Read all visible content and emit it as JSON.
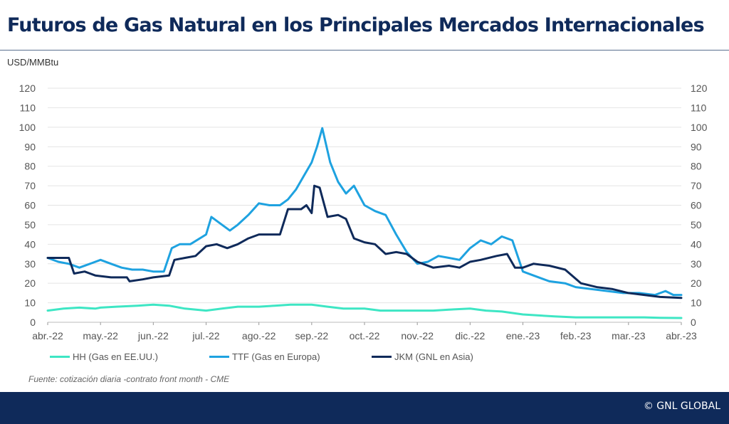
{
  "header": {
    "title": "Futuros de Gas Natural en los Principales Mercados Internacionales",
    "unit_label": "USD/MMBtu"
  },
  "footer": {
    "source": "Fuente: cotización diaria  -contrato front month - CME",
    "brand": "© GNL GLOBAL"
  },
  "colors": {
    "hh": "#3ee6c4",
    "ttf": "#1ea2e0",
    "jkm": "#0f2a5a",
    "footer": "#0f2a5a"
  },
  "chart_data": {
    "type": "line",
    "ylim": [
      0,
      120
    ],
    "yticks": [
      "0",
      "10",
      "20",
      "30",
      "40",
      "50",
      "60",
      "70",
      "80",
      "90",
      "100",
      "110",
      "120"
    ],
    "x_tick_labels": [
      "abr.-22",
      "may.-22",
      "jun.-22",
      "jul.-22",
      "ago.-22",
      "sep.-22",
      "oct.-22",
      "nov.-22",
      "dic.-22",
      "ene.-23",
      "feb.-23",
      "mar.-23",
      "abr.-23"
    ],
    "grid": true,
    "legend_position": "bottom",
    "series": [
      {
        "name": "HH (Gas en EE.UU.)",
        "color_key": "hh",
        "points": [
          [
            0,
            6
          ],
          [
            0.3,
            7
          ],
          [
            0.6,
            7.5
          ],
          [
            0.9,
            7
          ],
          [
            1.0,
            7.5
          ],
          [
            1.3,
            8
          ],
          [
            1.7,
            8.5
          ],
          [
            2.0,
            9
          ],
          [
            2.3,
            8.5
          ],
          [
            2.6,
            7
          ],
          [
            3.0,
            6
          ],
          [
            3.3,
            7
          ],
          [
            3.6,
            8
          ],
          [
            4.0,
            8
          ],
          [
            4.3,
            8.5
          ],
          [
            4.6,
            9
          ],
          [
            5.0,
            9
          ],
          [
            5.3,
            8
          ],
          [
            5.6,
            7
          ],
          [
            6.0,
            7
          ],
          [
            6.3,
            6
          ],
          [
            6.6,
            6
          ],
          [
            7.0,
            6
          ],
          [
            7.3,
            6
          ],
          [
            7.6,
            6.5
          ],
          [
            8.0,
            7
          ],
          [
            8.3,
            6
          ],
          [
            8.6,
            5.5
          ],
          [
            9.0,
            4
          ],
          [
            9.3,
            3.5
          ],
          [
            9.6,
            3
          ],
          [
            10.0,
            2.5
          ],
          [
            10.3,
            2.5
          ],
          [
            10.6,
            2.5
          ],
          [
            11.0,
            2.5
          ],
          [
            11.3,
            2.5
          ],
          [
            11.6,
            2.3
          ],
          [
            12.0,
            2.2
          ]
        ]
      },
      {
        "name": "TTF (Gas en Europa)",
        "color_key": "ttf",
        "points": [
          [
            0,
            33
          ],
          [
            0.2,
            31
          ],
          [
            0.4,
            30
          ],
          [
            0.6,
            28
          ],
          [
            0.8,
            30
          ],
          [
            1.0,
            32
          ],
          [
            1.2,
            30
          ],
          [
            1.4,
            28
          ],
          [
            1.6,
            27
          ],
          [
            1.8,
            27
          ],
          [
            2.0,
            26
          ],
          [
            2.2,
            26
          ],
          [
            2.35,
            38
          ],
          [
            2.5,
            40
          ],
          [
            2.7,
            40
          ],
          [
            3.0,
            45
          ],
          [
            3.1,
            54
          ],
          [
            3.3,
            50
          ],
          [
            3.45,
            47
          ],
          [
            3.6,
            50
          ],
          [
            3.8,
            55
          ],
          [
            4.0,
            61
          ],
          [
            4.2,
            60
          ],
          [
            4.4,
            60
          ],
          [
            4.55,
            63
          ],
          [
            4.7,
            68
          ],
          [
            4.85,
            75
          ],
          [
            5.0,
            82
          ],
          [
            5.1,
            90
          ],
          [
            5.2,
            99.5
          ],
          [
            5.35,
            82
          ],
          [
            5.5,
            72
          ],
          [
            5.65,
            66
          ],
          [
            5.8,
            70
          ],
          [
            6.0,
            60
          ],
          [
            6.2,
            57
          ],
          [
            6.4,
            55
          ],
          [
            6.6,
            45
          ],
          [
            6.8,
            36
          ],
          [
            7.0,
            30
          ],
          [
            7.2,
            31
          ],
          [
            7.4,
            34
          ],
          [
            7.6,
            33
          ],
          [
            7.8,
            32
          ],
          [
            8.0,
            38
          ],
          [
            8.2,
            42
          ],
          [
            8.4,
            40
          ],
          [
            8.6,
            44
          ],
          [
            8.8,
            42
          ],
          [
            9.0,
            26
          ],
          [
            9.2,
            24
          ],
          [
            9.5,
            21
          ],
          [
            9.8,
            20
          ],
          [
            10.0,
            18
          ],
          [
            10.3,
            17
          ],
          [
            10.6,
            16
          ],
          [
            10.9,
            15
          ],
          [
            11.2,
            15
          ],
          [
            11.5,
            14
          ],
          [
            11.7,
            16
          ],
          [
            11.85,
            14
          ],
          [
            12.0,
            14
          ]
        ]
      },
      {
        "name": "JKM (GNL en Asia)",
        "color_key": "jkm",
        "points": [
          [
            0,
            33
          ],
          [
            0.4,
            33
          ],
          [
            0.5,
            25
          ],
          [
            0.7,
            26
          ],
          [
            0.9,
            24
          ],
          [
            1.2,
            23
          ],
          [
            1.5,
            23
          ],
          [
            1.55,
            21
          ],
          [
            1.8,
            22
          ],
          [
            2.0,
            23
          ],
          [
            2.3,
            24
          ],
          [
            2.4,
            32
          ],
          [
            2.6,
            33
          ],
          [
            2.8,
            34
          ],
          [
            3.0,
            39
          ],
          [
            3.2,
            40
          ],
          [
            3.4,
            38
          ],
          [
            3.6,
            40
          ],
          [
            3.8,
            43
          ],
          [
            4.0,
            45
          ],
          [
            4.2,
            45
          ],
          [
            4.4,
            45
          ],
          [
            4.55,
            58
          ],
          [
            4.8,
            58
          ],
          [
            4.9,
            60
          ],
          [
            5.0,
            56
          ],
          [
            5.05,
            70
          ],
          [
            5.15,
            69
          ],
          [
            5.3,
            54
          ],
          [
            5.5,
            55
          ],
          [
            5.65,
            53
          ],
          [
            5.8,
            43
          ],
          [
            6.0,
            41
          ],
          [
            6.2,
            40
          ],
          [
            6.4,
            35
          ],
          [
            6.6,
            36
          ],
          [
            6.8,
            35
          ],
          [
            7.0,
            31
          ],
          [
            7.3,
            28
          ],
          [
            7.6,
            29
          ],
          [
            7.8,
            28
          ],
          [
            8.0,
            31
          ],
          [
            8.2,
            32
          ],
          [
            8.5,
            34
          ],
          [
            8.7,
            35
          ],
          [
            8.85,
            28
          ],
          [
            9.0,
            28
          ],
          [
            9.2,
            30
          ],
          [
            9.5,
            29
          ],
          [
            9.8,
            27
          ],
          [
            10.1,
            20
          ],
          [
            10.4,
            18
          ],
          [
            10.7,
            17
          ],
          [
            11.0,
            15
          ],
          [
            11.3,
            14
          ],
          [
            11.6,
            13
          ],
          [
            12.0,
            12.5
          ]
        ]
      }
    ]
  }
}
